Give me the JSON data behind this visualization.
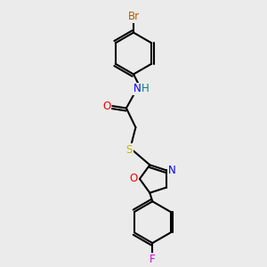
{
  "background_color": "#ebebeb",
  "bond_width": 1.5,
  "atom_colors": {
    "Br": "#b85c00",
    "N": "#0000ee",
    "H": "#008080",
    "O": "#ee0000",
    "S": "#bbbb00",
    "F": "#dd00dd",
    "C": "#000000"
  },
  "font_size": 8.5,
  "figsize": [
    3.0,
    3.0
  ],
  "dpi": 100
}
